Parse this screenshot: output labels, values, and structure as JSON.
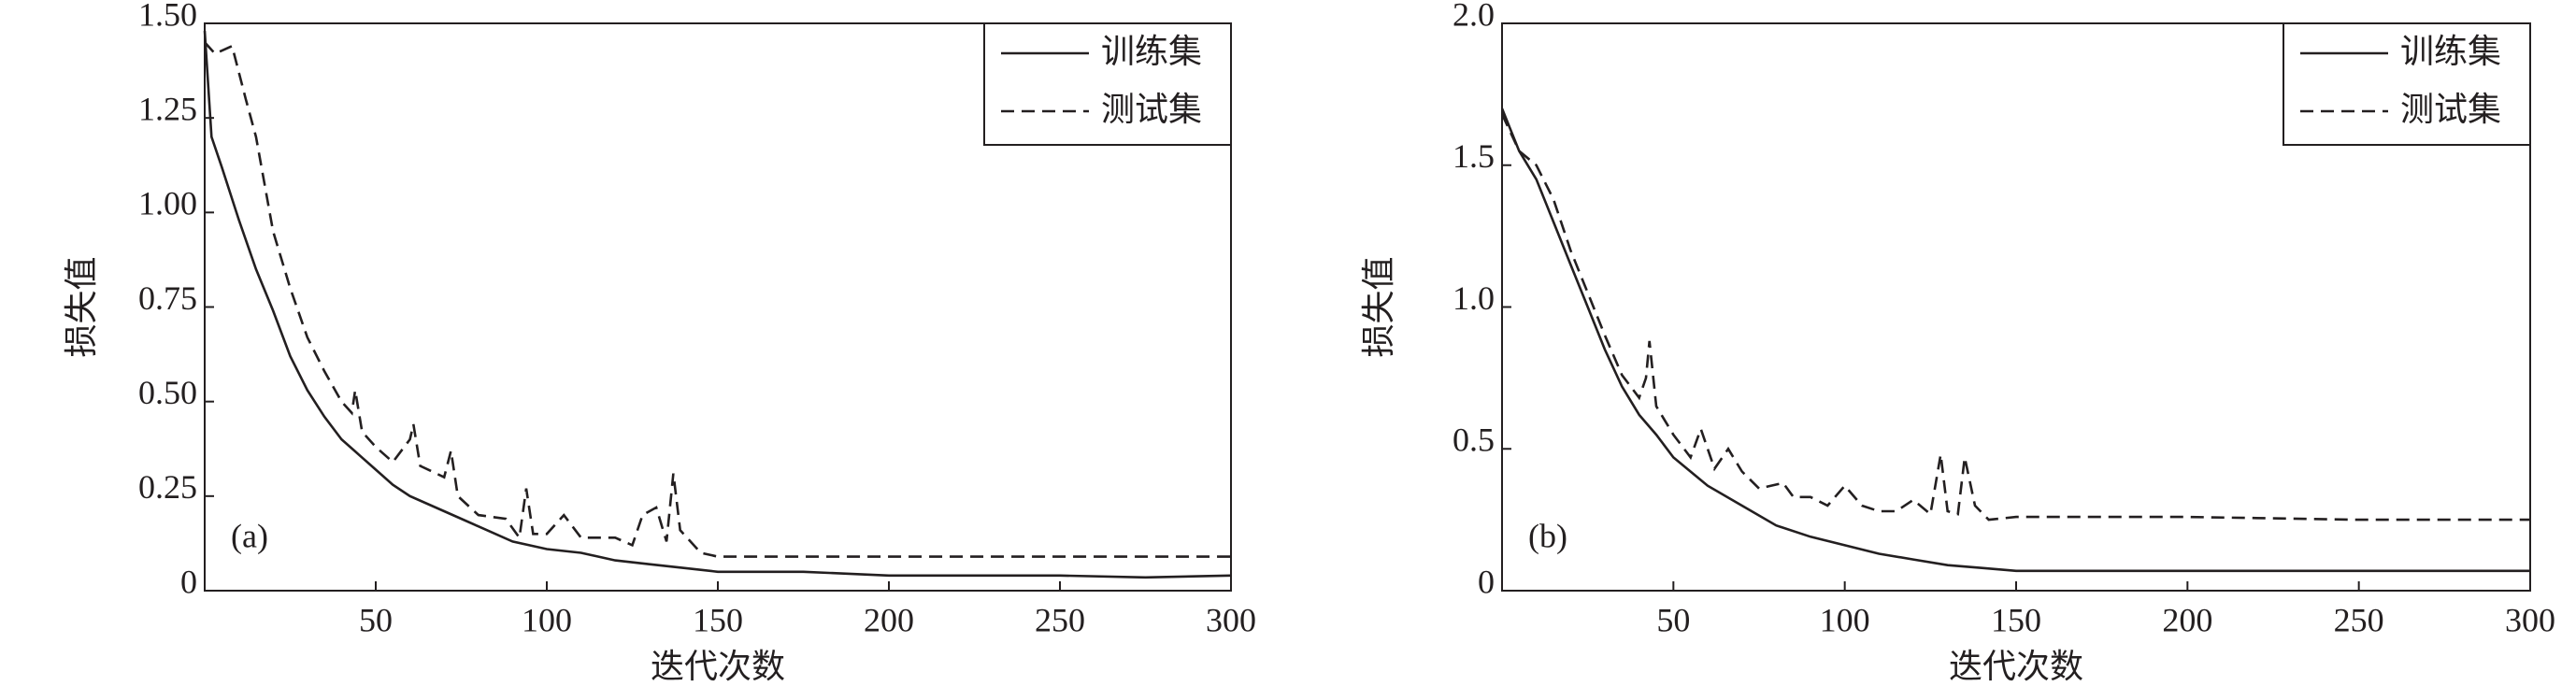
{
  "chart_data": [
    {
      "type": "line",
      "annotation": "(a)",
      "x_label": "迭代次数",
      "y_label": "损失值",
      "xlim": [
        0,
        300
      ],
      "ylim": [
        0,
        1.5
      ],
      "xticks": [
        50,
        100,
        150,
        200,
        250,
        300
      ],
      "yticks": [
        0,
        0.25,
        {
          "value": 0.5,
          "label": "0.50"
        },
        0.75,
        {
          "value": 1,
          "label": "1.00"
        },
        1.25,
        {
          "value": 1.5,
          "label": "1.50"
        }
      ],
      "legend": "upper right",
      "series": [
        {
          "name": "训练集",
          "color": "#231f20",
          "dash": "solid",
          "x": [
            0,
            2,
            5,
            10,
            15,
            20,
            25,
            30,
            35,
            40,
            45,
            50,
            55,
            60,
            70,
            80,
            90,
            100,
            110,
            120,
            130,
            140,
            150,
            175,
            200,
            250,
            275,
            300
          ],
          "values": [
            1.48,
            1.2,
            1.12,
            0.98,
            0.85,
            0.74,
            0.62,
            0.53,
            0.46,
            0.4,
            0.36,
            0.32,
            0.28,
            0.25,
            0.21,
            0.17,
            0.13,
            0.11,
            0.1,
            0.08,
            0.07,
            0.06,
            0.05,
            0.05,
            0.04,
            0.04,
            0.035,
            0.04
          ]
        },
        {
          "name": "测试集",
          "color": "#231f20",
          "dash": "dashed",
          "x": [
            0,
            3,
            8,
            12,
            15,
            20,
            25,
            30,
            35,
            40,
            43,
            44,
            46,
            50,
            55,
            60,
            61,
            63,
            70,
            72,
            74,
            80,
            88,
            92,
            94,
            96,
            100,
            105,
            110,
            120,
            125,
            128,
            132,
            135,
            137,
            139,
            145,
            150,
            200,
            250,
            300
          ],
          "values": [
            1.45,
            1.42,
            1.44,
            1.3,
            1.2,
            0.95,
            0.8,
            0.67,
            0.58,
            0.5,
            0.47,
            0.53,
            0.42,
            0.38,
            0.34,
            0.4,
            0.44,
            0.33,
            0.3,
            0.37,
            0.25,
            0.2,
            0.19,
            0.14,
            0.27,
            0.15,
            0.15,
            0.2,
            0.14,
            0.14,
            0.12,
            0.2,
            0.22,
            0.13,
            0.31,
            0.16,
            0.1,
            0.09,
            0.09,
            0.09,
            0.09
          ]
        }
      ]
    },
    {
      "type": "line",
      "annotation": "(b)",
      "x_label": "迭代次数",
      "y_label": "损失值",
      "xlim": [
        0,
        300
      ],
      "ylim": [
        0,
        2
      ],
      "xticks": [
        50,
        100,
        150,
        200,
        250,
        300
      ],
      "yticks": [
        0,
        0.5,
        {
          "value": 1,
          "label": "1.0"
        },
        1.5,
        {
          "value": 2,
          "label": "2.0"
        }
      ],
      "legend": "upper right",
      "series": [
        {
          "name": "训练集",
          "color": "#231f20",
          "dash": "solid",
          "x": [
            0,
            5,
            10,
            15,
            20,
            25,
            30,
            35,
            40,
            45,
            50,
            60,
            70,
            80,
            90,
            100,
            110,
            120,
            130,
            140,
            150,
            200,
            250,
            300
          ],
          "values": [
            1.7,
            1.55,
            1.45,
            1.3,
            1.15,
            1.0,
            0.85,
            0.72,
            0.62,
            0.55,
            0.47,
            0.37,
            0.3,
            0.23,
            0.19,
            0.16,
            0.13,
            0.11,
            0.09,
            0.08,
            0.07,
            0.07,
            0.07,
            0.07
          ]
        },
        {
          "name": "测试集",
          "color": "#231f20",
          "dash": "dashed",
          "x": [
            0,
            5,
            10,
            15,
            20,
            25,
            30,
            35,
            40,
            42,
            43,
            45,
            50,
            55,
            58,
            62,
            66,
            70,
            75,
            82,
            85,
            90,
            95,
            100,
            105,
            110,
            115,
            120,
            125,
            128,
            130,
            133,
            135,
            138,
            142,
            150,
            200,
            250,
            300
          ],
          "values": [
            1.68,
            1.55,
            1.5,
            1.38,
            1.2,
            1.05,
            0.9,
            0.76,
            0.68,
            0.75,
            0.88,
            0.65,
            0.55,
            0.47,
            0.57,
            0.43,
            0.5,
            0.42,
            0.36,
            0.38,
            0.33,
            0.33,
            0.3,
            0.37,
            0.3,
            0.28,
            0.28,
            0.32,
            0.27,
            0.48,
            0.28,
            0.27,
            0.47,
            0.3,
            0.25,
            0.26,
            0.26,
            0.25,
            0.25
          ]
        }
      ]
    }
  ]
}
